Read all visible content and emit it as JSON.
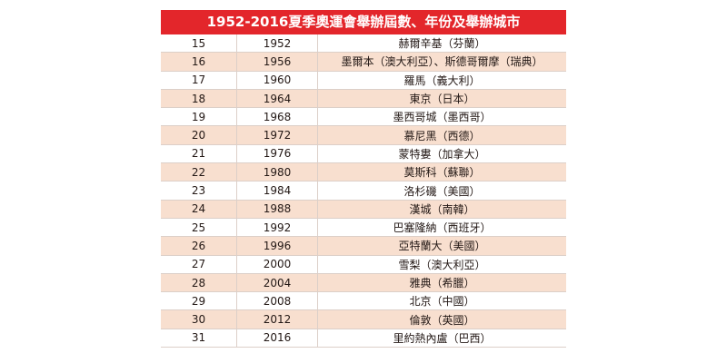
{
  "title": "1952-2016夏季奧運會舉辦屆數、年份及舉辦城市",
  "colors": {
    "title_bg": "#e3262b",
    "stripe": "#f8dfcf"
  },
  "rows": [
    {
      "session": "15",
      "year": "1952",
      "city": "赫爾辛基（芬蘭）"
    },
    {
      "session": "16",
      "year": "1956",
      "city": "墨爾本（澳大利亞）、斯德哥爾摩（瑞典）"
    },
    {
      "session": "17",
      "year": "1960",
      "city": "羅馬（義大利）"
    },
    {
      "session": "18",
      "year": "1964",
      "city": "東京（日本）"
    },
    {
      "session": "19",
      "year": "1968",
      "city": "墨西哥城（墨西哥）"
    },
    {
      "session": "20",
      "year": "1972",
      "city": "慕尼黑（西德）"
    },
    {
      "session": "21",
      "year": "1976",
      "city": "蒙特婁（加拿大）"
    },
    {
      "session": "22",
      "year": "1980",
      "city": "莫斯科（蘇聯）"
    },
    {
      "session": "23",
      "year": "1984",
      "city": "洛杉磯（美國）"
    },
    {
      "session": "24",
      "year": "1988",
      "city": "漢城（南韓）"
    },
    {
      "session": "25",
      "year": "1992",
      "city": "巴塞隆納（西班牙）"
    },
    {
      "session": "26",
      "year": "1996",
      "city": "亞特蘭大（美國）"
    },
    {
      "session": "27",
      "year": "2000",
      "city": "雪梨（澳大利亞）"
    },
    {
      "session": "28",
      "year": "2004",
      "city": "雅典（希臘）"
    },
    {
      "session": "29",
      "year": "2008",
      "city": "北京（中國）"
    },
    {
      "session": "30",
      "year": "2012",
      "city": "倫敦（英國）"
    },
    {
      "session": "31",
      "year": "2016",
      "city": "里約熱內盧（巴西）"
    }
  ]
}
